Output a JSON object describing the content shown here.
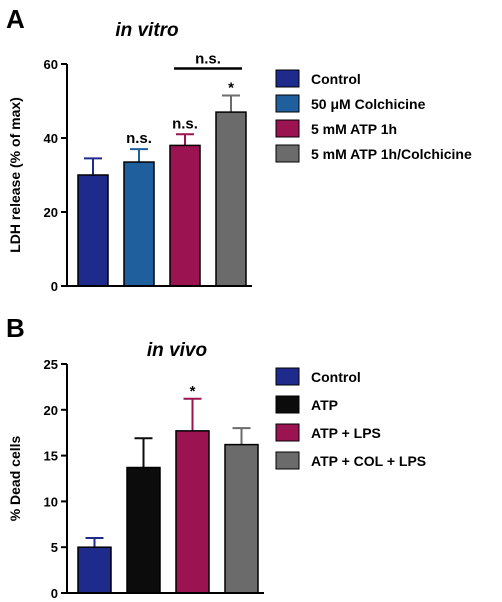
{
  "chart_data": [
    {
      "type": "bar",
      "panel_letter": "A",
      "title": "in vitro",
      "ylabel": "LDH release (% of max)",
      "xlabel": "",
      "ylim": [
        0,
        60
      ],
      "yticks": [
        "0",
        "20",
        "40",
        "60"
      ],
      "grid": false,
      "legend_position": "right",
      "series": [
        {
          "name": "Control",
          "value": 30,
          "error": 4.5,
          "color": "#1e2a8c",
          "annotation": ""
        },
        {
          "name": "50 μM Colchicine",
          "value": 33.5,
          "error": 3.5,
          "color": "#1f5f9e",
          "annotation": "n.s."
        },
        {
          "name": "5 mM ATP 1h",
          "value": 38,
          "error": 3,
          "color": "#9b1350",
          "annotation": "n.s."
        },
        {
          "name": "5 mM ATP 1h/Colchicine",
          "value": 47,
          "error": 4.5,
          "color": "#6b6b6b",
          "annotation": "*"
        }
      ],
      "bracket": {
        "from": 2,
        "to": 3,
        "label": "n.s."
      }
    },
    {
      "type": "bar",
      "panel_letter": "B",
      "title": "in vivo",
      "ylabel": "% Dead cells",
      "xlabel": "",
      "ylim": [
        0,
        25
      ],
      "yticks": [
        "0",
        "5",
        "10",
        "15",
        "20",
        "25"
      ],
      "grid": false,
      "legend_position": "right",
      "series": [
        {
          "name": "Control",
          "value": 5,
          "error": 1,
          "color": "#1e2a8c",
          "annotation": ""
        },
        {
          "name": "ATP",
          "value": 13.7,
          "error": 3.2,
          "color": "#0c0c0c",
          "annotation": ""
        },
        {
          "name": "ATP + LPS",
          "value": 17.7,
          "error": 3.5,
          "color": "#9b1350",
          "annotation": "*"
        },
        {
          "name": "ATP + COL + LPS",
          "value": 16.2,
          "error": 1.8,
          "color": "#6b6b6b",
          "annotation": ""
        }
      ]
    }
  ]
}
